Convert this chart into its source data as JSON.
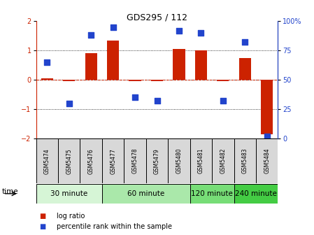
{
  "title": "GDS295 / 112",
  "samples": [
    "GSM5474",
    "GSM5475",
    "GSM5476",
    "GSM5477",
    "GSM5478",
    "GSM5479",
    "GSM5480",
    "GSM5481",
    "GSM5482",
    "GSM5483",
    "GSM5484"
  ],
  "log_ratio": [
    0.05,
    -0.05,
    0.9,
    1.35,
    -0.05,
    -0.05,
    1.05,
    1.0,
    -0.05,
    0.75,
    -1.85
  ],
  "percentile": [
    65,
    30,
    88,
    95,
    35,
    32,
    92,
    90,
    32,
    82,
    2
  ],
  "groups": [
    {
      "label": "30 minute",
      "indices": [
        0,
        1,
        2
      ],
      "color": "#d6f5d6"
    },
    {
      "label": "60 minute",
      "indices": [
        3,
        4,
        5,
        6
      ],
      "color": "#aae8aa"
    },
    {
      "label": "120 minute",
      "indices": [
        7,
        8
      ],
      "color": "#77dd77"
    },
    {
      "label": "240 minute",
      "indices": [
        9,
        10
      ],
      "color": "#44cc44"
    }
  ],
  "bar_color": "#cc2200",
  "dot_color": "#2244cc",
  "ylim_left": [
    -2,
    2
  ],
  "ylim_right": [
    0,
    100
  ],
  "yticks_left": [
    -2,
    -1,
    0,
    1,
    2
  ],
  "yticks_right": [
    0,
    25,
    50,
    75,
    100
  ],
  "ytick_labels_right": [
    "0",
    "25",
    "50",
    "75",
    "100%"
  ],
  "bar_width": 0.55,
  "dot_size": 28,
  "background_color": "#ffffff",
  "time_label": "time",
  "legend_log_ratio": "log ratio",
  "legend_percentile": "percentile rank within the sample",
  "title_fontsize": 9,
  "axis_fontsize": 7,
  "sample_fontsize": 5.5,
  "group_fontsize": 7.5,
  "legend_fontsize": 7
}
